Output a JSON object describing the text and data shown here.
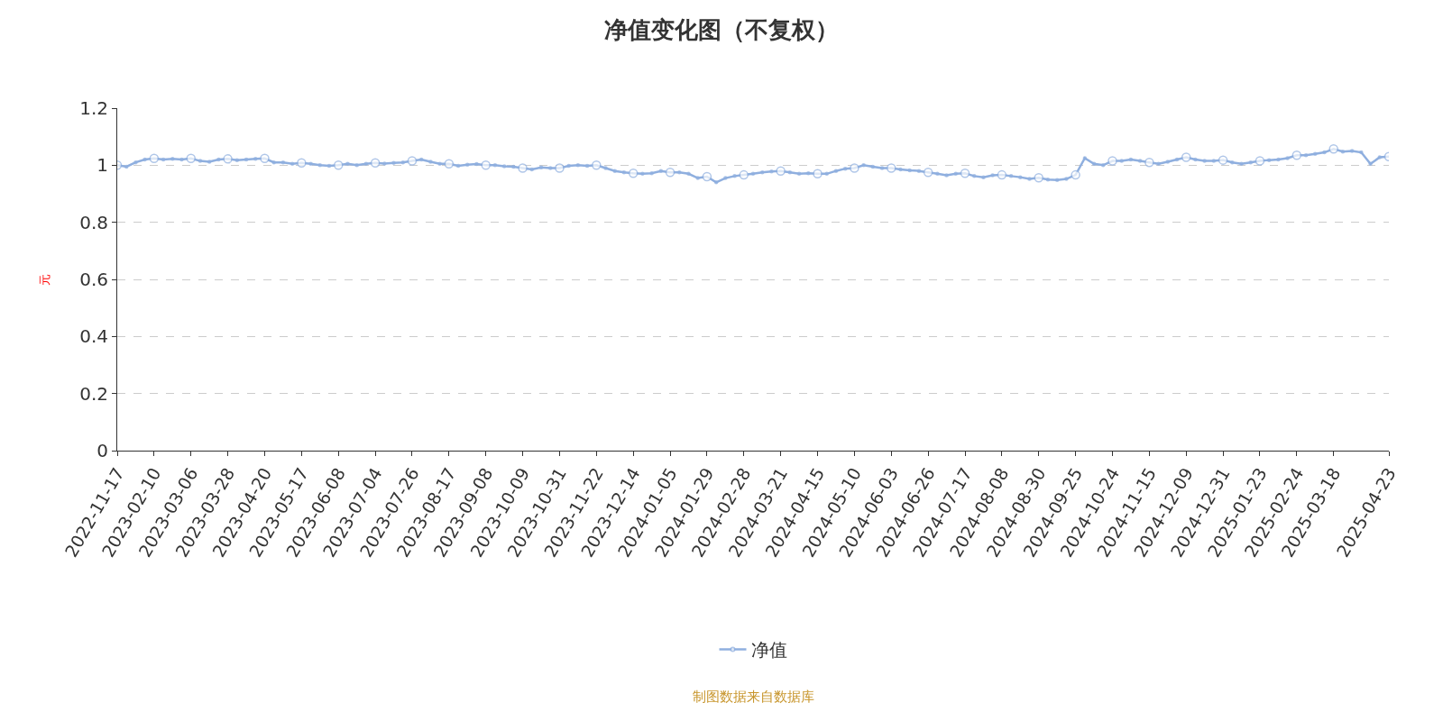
{
  "chart_data": {
    "type": "line",
    "title": "净值变化图（不复权）",
    "ylabel": "元",
    "categories": [
      "2022-11-17",
      null,
      null,
      null,
      "2023-02-10",
      null,
      null,
      null,
      "2023-03-06",
      null,
      null,
      null,
      "2023-03-28",
      null,
      null,
      null,
      "2023-04-20",
      null,
      null,
      null,
      "2023-05-17",
      null,
      null,
      null,
      "2023-06-08",
      null,
      null,
      null,
      "2023-07-04",
      null,
      null,
      null,
      "2023-07-26",
      null,
      null,
      null,
      "2023-08-17",
      null,
      null,
      null,
      "2023-09-08",
      null,
      null,
      null,
      "2023-10-09",
      null,
      null,
      null,
      "2023-10-31",
      null,
      null,
      null,
      "2023-11-22",
      null,
      null,
      null,
      "2023-12-14",
      null,
      null,
      null,
      "2024-01-05",
      null,
      null,
      null,
      "2024-01-29",
      null,
      null,
      null,
      "2024-02-28",
      null,
      null,
      null,
      "2024-03-21",
      null,
      null,
      null,
      "2024-04-15",
      null,
      null,
      null,
      "2024-05-10",
      null,
      null,
      null,
      "2024-06-03",
      null,
      null,
      null,
      "2024-06-26",
      null,
      null,
      null,
      "2024-07-17",
      null,
      null,
      null,
      "2024-08-08",
      null,
      null,
      null,
      "2024-08-30",
      null,
      null,
      null,
      "2024-09-25",
      null,
      null,
      null,
      "2024-10-24",
      null,
      null,
      null,
      "2024-11-15",
      null,
      null,
      null,
      "2024-12-09",
      null,
      null,
      null,
      "2024-12-31",
      null,
      null,
      null,
      "2025-01-23",
      null,
      null,
      null,
      "2025-02-24",
      null,
      null,
      null,
      "2025-03-18",
      null,
      null,
      null,
      null,
      null,
      "2025-04-23"
    ],
    "series": [
      {
        "name": "净值",
        "color": "#8fafdf",
        "values": [
          1.0,
          0.995,
          1.01,
          1.02,
          1.024,
          1.02,
          1.022,
          1.02,
          1.024,
          1.015,
          1.012,
          1.02,
          1.022,
          1.018,
          1.02,
          1.022,
          1.024,
          1.01,
          1.01,
          1.005,
          1.008,
          1.005,
          1.0,
          0.998,
          1.0,
          1.005,
          1.0,
          1.005,
          1.008,
          1.006,
          1.008,
          1.01,
          1.015,
          1.02,
          1.012,
          1.005,
          1.005,
          0.998,
          1.002,
          1.004,
          1.0,
          1.0,
          0.996,
          0.995,
          0.99,
          0.985,
          0.992,
          0.99,
          0.99,
          0.998,
          1.0,
          0.998,
          1.0,
          0.99,
          0.98,
          0.975,
          0.972,
          0.97,
          0.972,
          0.98,
          0.975,
          0.975,
          0.97,
          0.955,
          0.96,
          0.94,
          0.955,
          0.962,
          0.966,
          0.97,
          0.975,
          0.978,
          0.98,
          0.975,
          0.97,
          0.972,
          0.97,
          0.97,
          0.98,
          0.988,
          0.99,
          1.0,
          0.995,
          0.99,
          0.99,
          0.985,
          0.982,
          0.98,
          0.975,
          0.97,
          0.965,
          0.97,
          0.972,
          0.962,
          0.958,
          0.965,
          0.966,
          0.962,
          0.958,
          0.952,
          0.956,
          0.95,
          0.948,
          0.952,
          0.966,
          1.025,
          1.005,
          1.0,
          1.015,
          1.015,
          1.02,
          1.015,
          1.01,
          1.005,
          1.012,
          1.02,
          1.028,
          1.02,
          1.015,
          1.015,
          1.018,
          1.01,
          1.005,
          1.01,
          1.015,
          1.018,
          1.02,
          1.025,
          1.035,
          1.035,
          1.04,
          1.045,
          1.057,
          1.048,
          1.05,
          1.045,
          1.005,
          1.028,
          1.03
        ]
      }
    ],
    "ylim": [
      0,
      1.2
    ],
    "yticks": [
      0,
      0.2,
      0.4,
      0.6,
      0.8,
      1,
      1.2
    ],
    "grid": "y",
    "legend": "bottom",
    "marker": "circle",
    "line_style": "solid",
    "annotations": [
      "制图数据来自数据库"
    ]
  }
}
